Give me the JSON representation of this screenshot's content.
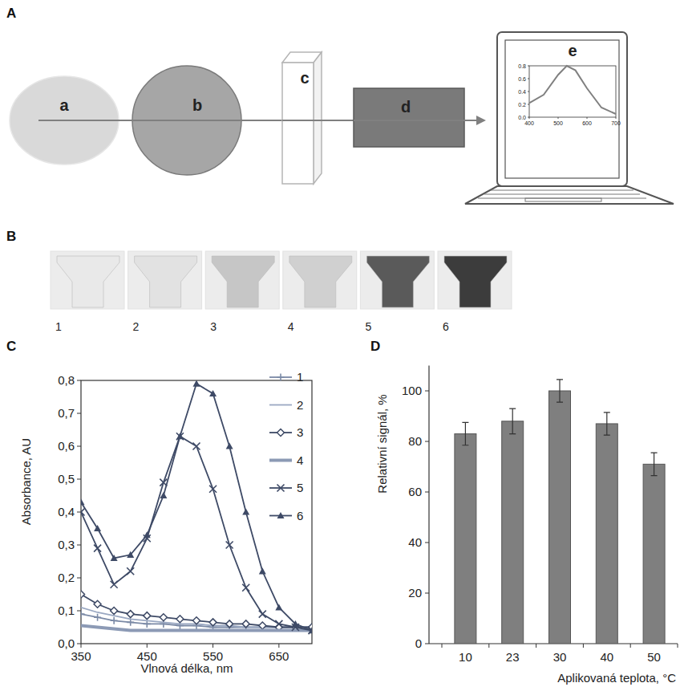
{
  "panel_labels": [
    "A",
    "B",
    "C",
    "D"
  ],
  "diagram": {
    "nodes": [
      {
        "label": "a"
      },
      {
        "label": "b"
      },
      {
        "label": "c"
      },
      {
        "label": "d"
      },
      {
        "label": "e"
      }
    ],
    "screen_chart": {
      "x": [
        400,
        450,
        500,
        530,
        560,
        600,
        650,
        700
      ],
      "values": [
        0.22,
        0.35,
        0.66,
        0.8,
        0.73,
        0.45,
        0.15,
        0.05
      ],
      "xlim": [
        400,
        700
      ],
      "ylim": [
        0,
        0.8
      ],
      "xticks": [
        400,
        500,
        600,
        700
      ],
      "yticks": [
        {
          "value": 0,
          "label": "0.0"
        },
        {
          "value": 0.2,
          "label": "0.2"
        },
        {
          "value": 0.4,
          "label": "0.4"
        },
        {
          "value": 0.6,
          "label": "0.6"
        },
        {
          "value": 0.8,
          "label": "0.8"
        }
      ]
    }
  },
  "photos": {
    "items": [
      {
        "label": "1",
        "color": "#e9e9e9"
      },
      {
        "label": "2",
        "color": "#e2e2e2"
      },
      {
        "label": "3",
        "color": "#c6c6c6"
      },
      {
        "label": "4",
        "color": "#d0d0d0"
      },
      {
        "label": "5",
        "color": "#5a5a5a"
      },
      {
        "label": "6",
        "color": "#3c3c3c"
      }
    ]
  },
  "chart_data": [
    {
      "type": "line",
      "xlabel": "Vlnová délka, nm",
      "ylabel": "Absorbance, AU",
      "x": [
        350,
        375,
        400,
        425,
        450,
        475,
        500,
        525,
        550,
        575,
        600,
        625,
        650,
        675,
        700
      ],
      "xlim": [
        350,
        700
      ],
      "ylim": [
        0,
        0.8
      ],
      "xticks": [
        350,
        450,
        550,
        650
      ],
      "yticks": [
        {
          "value": 0,
          "label": "0,0"
        },
        {
          "value": 0.1,
          "label": "0,1"
        },
        {
          "value": 0.2,
          "label": "0,2"
        },
        {
          "value": 0.3,
          "label": "0,3"
        },
        {
          "value": 0.4,
          "label": "0,4"
        },
        {
          "value": 0.5,
          "label": "0,5"
        },
        {
          "value": 0.6,
          "label": "0,6"
        },
        {
          "value": 0.7,
          "label": "0,7"
        },
        {
          "value": 0.8,
          "label": "0,8"
        }
      ],
      "legend": "upper right",
      "series": [
        {
          "name": "1",
          "color": "#7b8aa6",
          "marker": "plus",
          "line_style": "solid",
          "values": [
            0.09,
            0.08,
            0.07,
            0.065,
            0.06,
            0.06,
            0.055,
            0.055,
            0.05,
            0.05,
            0.05,
            0.05,
            0.05,
            0.05,
            0.05
          ]
        },
        {
          "name": "2",
          "color": "#9aa8c2",
          "marker": "none",
          "line_style": "solid",
          "values": [
            0.11,
            0.095,
            0.085,
            0.075,
            0.07,
            0.065,
            0.06,
            0.06,
            0.055,
            0.055,
            0.05,
            0.05,
            0.05,
            0.05,
            0.05
          ]
        },
        {
          "name": "3",
          "color": "#3e4a66",
          "marker": "diamond",
          "line_style": "solid",
          "values": [
            0.15,
            0.12,
            0.1,
            0.09,
            0.085,
            0.08,
            0.075,
            0.07,
            0.065,
            0.06,
            0.06,
            0.055,
            0.05,
            0.05,
            0.05
          ]
        },
        {
          "name": "4",
          "color": "#8c9ab5",
          "marker": "none",
          "line_style": "bold",
          "values": [
            0.055,
            0.05,
            0.045,
            0.04,
            0.04,
            0.04,
            0.04,
            0.04,
            0.04,
            0.04,
            0.04,
            0.04,
            0.04,
            0.04,
            0.04
          ]
        },
        {
          "name": "5",
          "color": "#3e4a66",
          "marker": "x",
          "line_style": "solid",
          "values": [
            0.4,
            0.29,
            0.18,
            0.22,
            0.32,
            0.49,
            0.63,
            0.6,
            0.47,
            0.3,
            0.17,
            0.09,
            0.06,
            0.05,
            0.04
          ]
        },
        {
          "name": "6",
          "color": "#3e4a66",
          "marker": "triangle",
          "line_style": "solid",
          "values": [
            0.43,
            0.35,
            0.26,
            0.27,
            0.33,
            0.45,
            0.63,
            0.79,
            0.76,
            0.6,
            0.4,
            0.22,
            0.11,
            0.06,
            0.04
          ]
        }
      ]
    },
    {
      "type": "bar",
      "xlabel": "Aplikovaná teplota, °C",
      "ylabel": "Relativní signál, %",
      "categories": [
        "10",
        "23",
        "30",
        "40",
        "50"
      ],
      "values": [
        83,
        88,
        100,
        87,
        71
      ],
      "errors": [
        4.5,
        5,
        4.5,
        4.5,
        4.5
      ],
      "color": "#7f7f7f",
      "ylim": [
        0,
        110
      ],
      "yticks": [
        0,
        20,
        40,
        60,
        80,
        100
      ]
    }
  ]
}
